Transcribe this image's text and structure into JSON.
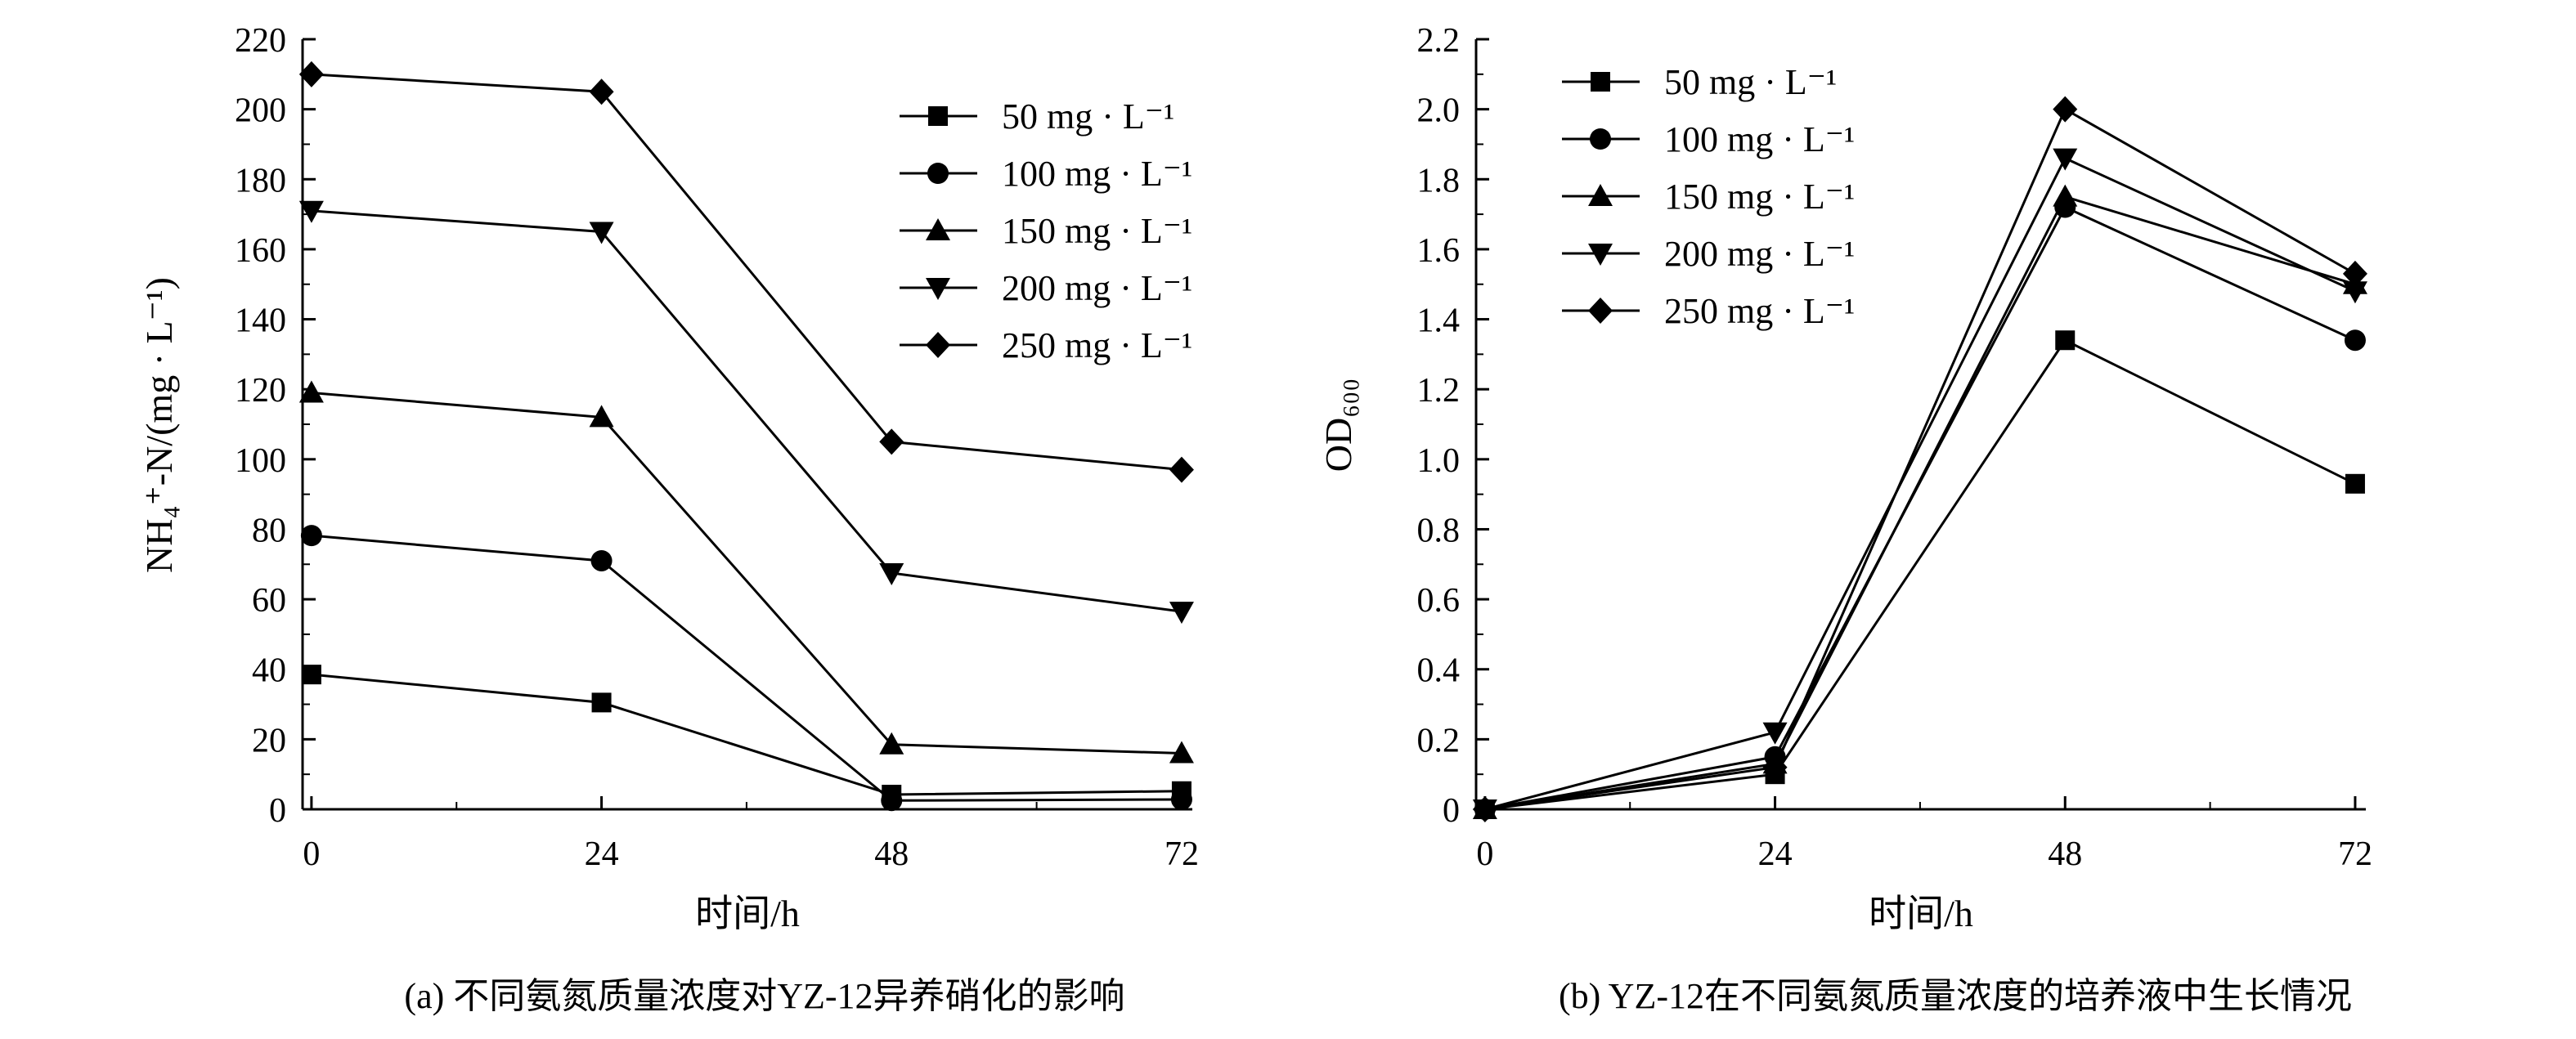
{
  "chart_data": [
    {
      "type": "line",
      "caption": "(a) 不同氨氮质量浓度对YZ-12异养硝化的影响",
      "xlabel": "时间/h",
      "ylabel": "NH₄⁺-N/(mg · L⁻¹)",
      "x": [
        0,
        24,
        48,
        72
      ],
      "xticks": [
        "0",
        "24",
        "48",
        "72"
      ],
      "xlim": [
        0,
        72
      ],
      "ylim": [
        0,
        220
      ],
      "yticks": [
        "0",
        "20",
        "40",
        "60",
        "80",
        "100",
        "120",
        "140",
        "160",
        "180",
        "200",
        "220"
      ],
      "legend_position": "top-right",
      "grid": false,
      "series": [
        {
          "name": "50 mg · L⁻¹",
          "marker": "square",
          "values": [
            38.5,
            30.5,
            4.2,
            5.2
          ]
        },
        {
          "name": "100 mg · L⁻¹",
          "marker": "circle",
          "values": [
            78.2,
            71.0,
            2.5,
            2.8
          ]
        },
        {
          "name": "150 mg · L⁻¹",
          "marker": "triangle-up",
          "values": [
            119.0,
            112.0,
            18.5,
            16.0
          ]
        },
        {
          "name": "200 mg · L⁻¹",
          "marker": "triangle-down",
          "values": [
            171.0,
            165.0,
            67.5,
            56.5
          ]
        },
        {
          "name": "250 mg · L⁻¹",
          "marker": "diamond",
          "values": [
            210.0,
            205.0,
            105.0,
            97.0
          ]
        }
      ]
    },
    {
      "type": "line",
      "caption": "(b) YZ-12在不同氨氮质量浓度的培养液中生长情况",
      "xlabel": "时间/h",
      "ylabel": "OD₆₀₀",
      "x": [
        0,
        24,
        48,
        72
      ],
      "xticks": [
        "0",
        "24",
        "48",
        "72"
      ],
      "xlim": [
        0,
        72
      ],
      "ylim": [
        0,
        2.2
      ],
      "yticks": [
        "0",
        "0.2",
        "0.4",
        "0.6",
        "0.8",
        "1.0",
        "1.2",
        "1.4",
        "1.6",
        "1.8",
        "2.0",
        "2.2"
      ],
      "legend_position": "top-left",
      "grid": false,
      "series": [
        {
          "name": "50 mg · L⁻¹",
          "marker": "square",
          "values": [
            0,
            0.1,
            1.34,
            0.93
          ]
        },
        {
          "name": "100 mg · L⁻¹",
          "marker": "circle",
          "values": [
            0,
            0.15,
            1.72,
            1.34
          ]
        },
        {
          "name": "150 mg · L⁻¹",
          "marker": "triangle-up",
          "values": [
            0,
            0.13,
            1.75,
            1.5
          ]
        },
        {
          "name": "200 mg · L⁻¹",
          "marker": "triangle-down",
          "values": [
            0,
            0.22,
            1.86,
            1.48
          ]
        },
        {
          "name": "250 mg · L⁻¹",
          "marker": "diamond",
          "values": [
            0,
            0.12,
            2.0,
            1.53
          ]
        }
      ]
    }
  ]
}
